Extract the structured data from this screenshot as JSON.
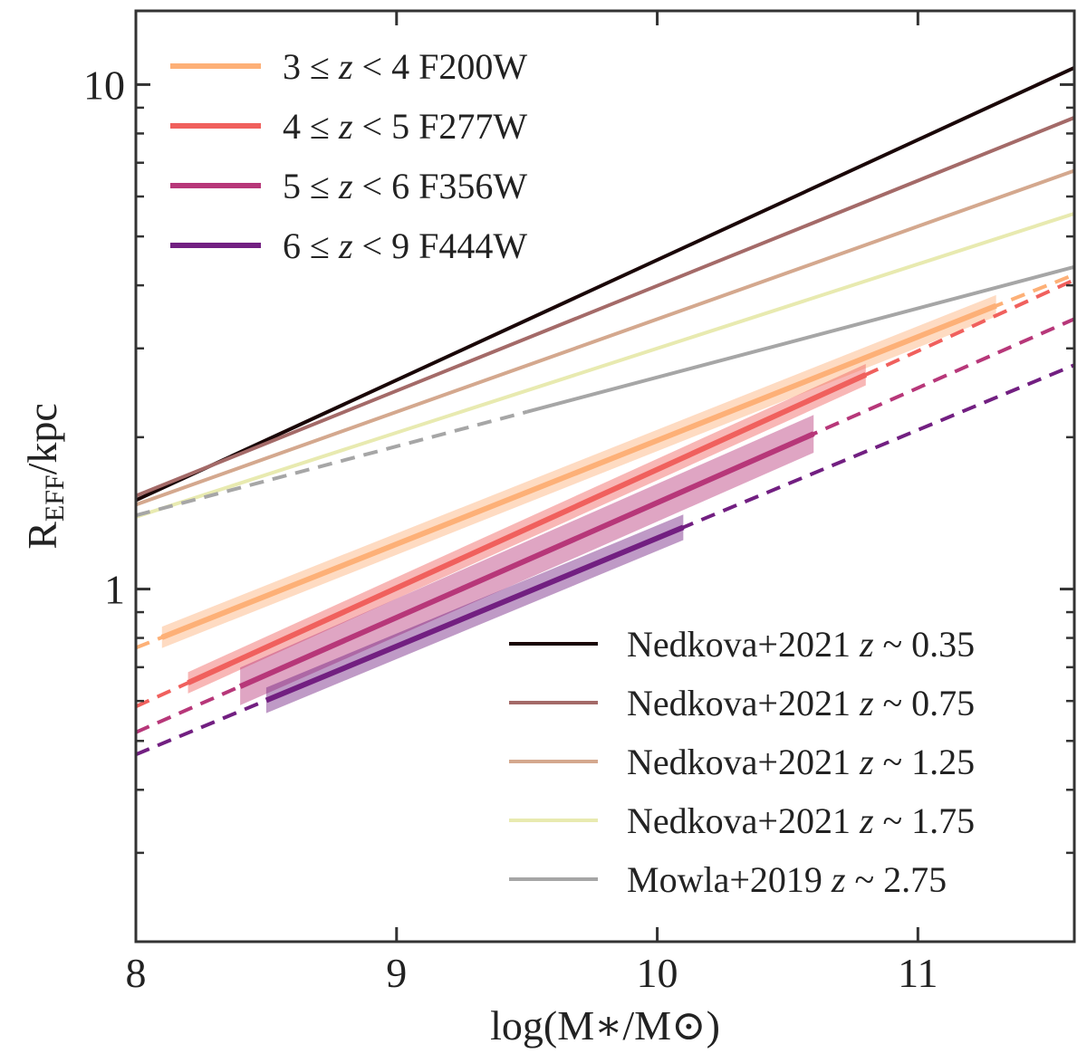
{
  "chart_data": {
    "type": "line",
    "title": "",
    "xlabel": "log(M∗/M⊙)",
    "ylabel": "R_EFF/kpc",
    "ylabel_main": "R",
    "ylabel_sub": "EFF",
    "ylabel_tail": "/kpc",
    "xlim": [
      8.0,
      11.6
    ],
    "ylim": [
      0.2,
      14.0
    ],
    "yscale": "log",
    "xticks": [
      {
        "value": 8,
        "label": "8"
      },
      {
        "value": 9,
        "label": "9"
      },
      {
        "value": 10,
        "label": "10"
      },
      {
        "value": 11,
        "label": "11"
      }
    ],
    "yticks_major": [
      {
        "value": 1,
        "label": "1"
      },
      {
        "value": 10,
        "label": "10"
      }
    ],
    "yticks_minor": [
      0.3,
      0.4,
      0.5,
      0.6,
      0.7,
      0.8,
      0.9,
      2,
      3,
      4,
      5,
      6,
      7,
      8,
      9
    ],
    "grid": false,
    "legend_top_left": [
      {
        "text": "3 ≤ z < 4 F200W",
        "pre": "3 ≤ ",
        "var": "z",
        "post": " < 4 F200W",
        "color": "#fdb077"
      },
      {
        "text": "4 ≤ z < 5 F277W",
        "pre": "4 ≤ ",
        "var": "z",
        "post": " < 5 F277W",
        "color": "#f0605d"
      },
      {
        "text": "5 ≤ z < 6 F356W",
        "pre": "5 ≤ ",
        "var": "z",
        "post": " < 6 F356W",
        "color": "#b73779"
      },
      {
        "text": "6 ≤ z < 9 F444W",
        "pre": "6 ≤ ",
        "var": "z",
        "post": " < 9 F444W",
        "color": "#721f81"
      }
    ],
    "legend_bottom_right": [
      {
        "text": "Nedkova+2021 z ~ 0.35",
        "pre": "Nedkova+2021 ",
        "var": "z",
        "post": " ~ 0.35",
        "color": "#1a0607"
      },
      {
        "text": "Nedkova+2021 z ~ 0.75",
        "pre": "Nedkova+2021 ",
        "var": "z",
        "post": " ~ 0.75",
        "color": "#a46a68"
      },
      {
        "text": "Nedkova+2021 z ~ 1.25",
        "pre": "Nedkova+2021 ",
        "var": "z",
        "post": " ~ 1.25",
        "color": "#d4a88e"
      },
      {
        "text": "Nedkova+2021 z ~ 1.75",
        "pre": "Nedkova+2021 ",
        "var": "z",
        "post": " ~ 1.75",
        "color": "#e8eab0"
      },
      {
        "text": "Mowla+2019 z ~ 2.75",
        "pre": "Mowla+2019 ",
        "var": "z",
        "post": " ~ 2.75",
        "color": "#a6a6a6"
      }
    ],
    "reference_series": [
      {
        "name": "Nedkova+2021 z~0.35",
        "color": "#1a0607",
        "solid_from": 8.0,
        "solid_to": 11.6,
        "dashed_from": null,
        "dashed_to": null,
        "x": [
          8.0,
          11.6
        ],
        "y": [
          1.5,
          10.8
        ]
      },
      {
        "name": "Nedkova+2021 z~0.75",
        "color": "#a46a68",
        "solid_from": 8.0,
        "solid_to": 11.6,
        "dashed_from": null,
        "dashed_to": null,
        "x": [
          8.0,
          11.6
        ],
        "y": [
          1.53,
          8.6
        ]
      },
      {
        "name": "Nedkova+2021 z~1.25",
        "color": "#d4a88e",
        "solid_from": 8.0,
        "solid_to": 11.6,
        "dashed_from": null,
        "dashed_to": null,
        "x": [
          8.0,
          11.6
        ],
        "y": [
          1.47,
          6.75
        ]
      },
      {
        "name": "Nedkova+2021 z~1.75",
        "color": "#e8eab0",
        "solid_from": 8.0,
        "solid_to": 11.6,
        "dashed_from": null,
        "dashed_to": null,
        "x": [
          8.0,
          11.6
        ],
        "y": [
          1.39,
          5.55
        ]
      },
      {
        "name": "Mowla+2019 z~2.75",
        "color": "#a6a6a6",
        "solid_from": 9.5,
        "solid_to": 11.6,
        "dashed_from": 8.0,
        "dashed_to": 9.5,
        "x": [
          8.0,
          11.6
        ],
        "y": [
          1.4,
          4.35
        ]
      }
    ],
    "fit_series": [
      {
        "name": "3<=z<4 F200W",
        "color": "#fdb077",
        "x_fit": [
          8.0,
          11.6
        ],
        "y_fit": [
          0.765,
          4.2
        ],
        "solid_from": 8.1,
        "solid_to": 11.3,
        "band_rel": 0.05
      },
      {
        "name": "4<=z<5 F277W",
        "color": "#f0605d",
        "x_fit": [
          8.0,
          11.6
        ],
        "y_fit": [
          0.585,
          4.1
        ],
        "solid_from": 8.2,
        "solid_to": 10.8,
        "band_rel": 0.05
      },
      {
        "name": "5<=z<6 F356W",
        "color": "#b73779",
        "x_fit": [
          8.0,
          11.6
        ],
        "y_fit": [
          0.52,
          3.43
        ],
        "solid_from": 8.4,
        "solid_to": 10.6,
        "band_rel": 0.09
      },
      {
        "name": "6<=z<9 F444W",
        "color": "#721f81",
        "x_fit": [
          8.0,
          11.6
        ],
        "y_fit": [
          0.47,
          2.78
        ],
        "solid_from": 8.5,
        "solid_to": 10.1,
        "band_rel": 0.06
      }
    ]
  }
}
